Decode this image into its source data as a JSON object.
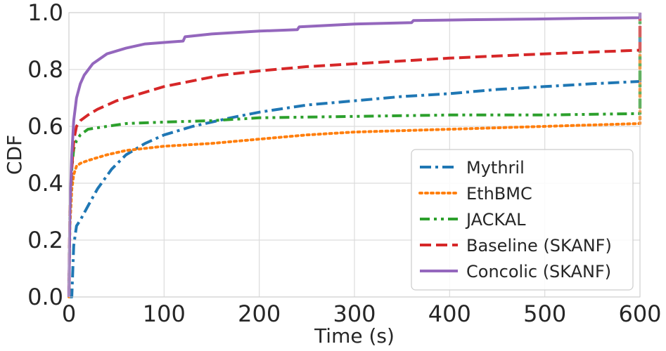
{
  "chart_data": {
    "type": "line",
    "title": "",
    "xlabel": "Time (s)",
    "ylabel": "CDF",
    "xlim": [
      0,
      600
    ],
    "ylim": [
      0.0,
      1.0
    ],
    "xticks": [
      "0",
      "100",
      "200",
      "300",
      "400",
      "500",
      "600"
    ],
    "yticks": [
      "0.0",
      "0.2",
      "0.4",
      "0.6",
      "0.8",
      "1.0"
    ],
    "grid": true,
    "legend_position": "lower-right",
    "series": [
      {
        "name": "Mythril",
        "color": "#1f77b4",
        "style": "dashdot",
        "x": [
          0,
          3,
          5,
          8,
          12,
          20,
          30,
          45,
          60,
          80,
          100,
          130,
          170,
          200,
          250,
          300,
          350,
          400,
          450,
          500,
          550,
          600,
          600
        ],
        "y": [
          0.0,
          0.0,
          0.18,
          0.25,
          0.27,
          0.32,
          0.38,
          0.45,
          0.5,
          0.54,
          0.57,
          0.6,
          0.63,
          0.65,
          0.675,
          0.69,
          0.705,
          0.715,
          0.73,
          0.74,
          0.75,
          0.758,
          0.92
        ]
      },
      {
        "name": "EthBMC",
        "color": "#ff7f0e",
        "style": "dotted",
        "x": [
          0,
          1,
          3,
          5,
          8,
          12,
          20,
          40,
          60,
          100,
          150,
          200,
          250,
          300,
          400,
          500,
          600,
          600
        ],
        "y": [
          0.0,
          0.25,
          0.38,
          0.43,
          0.46,
          0.47,
          0.48,
          0.5,
          0.515,
          0.53,
          0.54,
          0.555,
          0.57,
          0.58,
          0.59,
          0.6,
          0.61,
          0.88
        ]
      },
      {
        "name": "JACKAL",
        "color": "#2ca02c",
        "style": "dashdotdot",
        "x": [
          0,
          1,
          3,
          5,
          8,
          12,
          20,
          40,
          60,
          100,
          150,
          200,
          300,
          400,
          500,
          600,
          600
        ],
        "y": [
          0.0,
          0.3,
          0.45,
          0.52,
          0.55,
          0.57,
          0.59,
          0.6,
          0.61,
          0.615,
          0.62,
          0.63,
          0.635,
          0.64,
          0.64,
          0.645,
          0.97
        ]
      },
      {
        "name": "Baseline (SKANF)",
        "color": "#d62728",
        "style": "dashed",
        "x": [
          0,
          1,
          3,
          5,
          8,
          12,
          20,
          30,
          50,
          80,
          100,
          130,
          160,
          200,
          250,
          300,
          400,
          500,
          600,
          600
        ],
        "y": [
          0.0,
          0.33,
          0.45,
          0.55,
          0.6,
          0.62,
          0.64,
          0.66,
          0.69,
          0.72,
          0.74,
          0.76,
          0.78,
          0.795,
          0.81,
          0.82,
          0.84,
          0.855,
          0.868,
          0.99
        ]
      },
      {
        "name": "Concolic (SKANF)",
        "color": "#9467bd",
        "style": "solid",
        "x": [
          0,
          1,
          3,
          5,
          8,
          12,
          16,
          25,
          40,
          60,
          80,
          100,
          120,
          122,
          150,
          200,
          240,
          242,
          300,
          360,
          362,
          420,
          480,
          540,
          600,
          600
        ],
        "y": [
          0.0,
          0.3,
          0.5,
          0.62,
          0.7,
          0.75,
          0.78,
          0.82,
          0.855,
          0.875,
          0.89,
          0.895,
          0.9,
          0.915,
          0.925,
          0.935,
          0.94,
          0.95,
          0.96,
          0.965,
          0.972,
          0.975,
          0.977,
          0.98,
          0.982,
          1.0
        ]
      }
    ]
  }
}
